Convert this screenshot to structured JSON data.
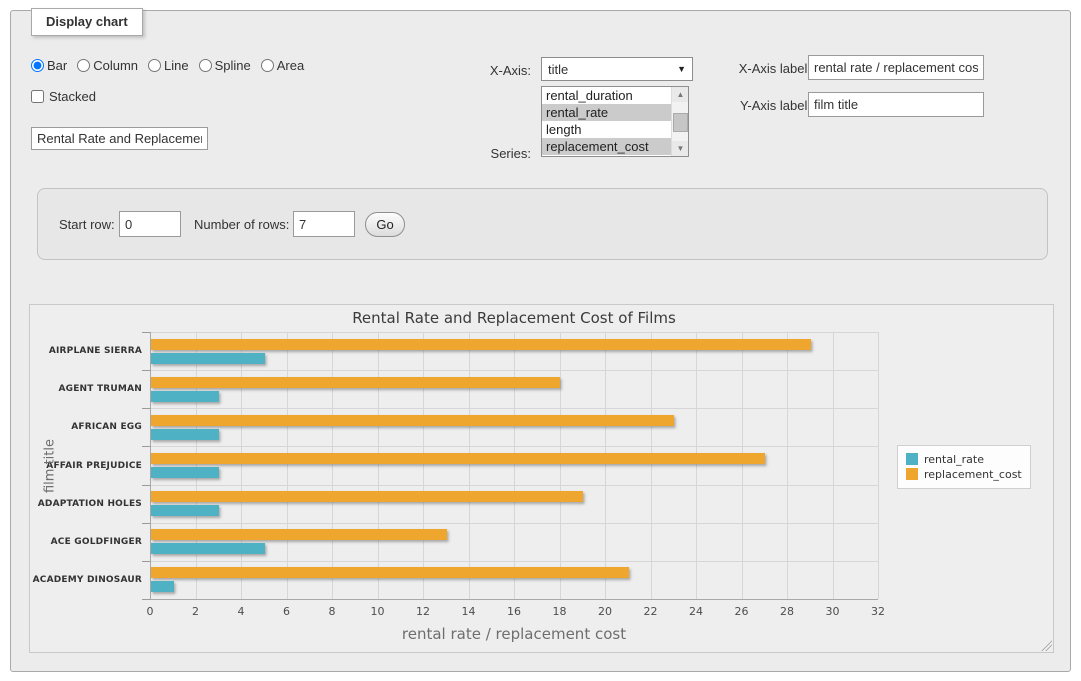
{
  "window": {
    "legend": "Display chart"
  },
  "chart_type": {
    "options": [
      {
        "label": "Bar",
        "selected": true
      },
      {
        "label": "Column",
        "selected": false
      },
      {
        "label": "Line",
        "selected": false
      },
      {
        "label": "Spline",
        "selected": false
      },
      {
        "label": "Area",
        "selected": false
      }
    ]
  },
  "stacked": {
    "label": "Stacked",
    "checked": false
  },
  "chart_title_input": {
    "value": "Rental Rate and Replacement Cost of Films"
  },
  "x_axis_select": {
    "label": "X-Axis:",
    "selected": "title",
    "arrow_icon": "▼"
  },
  "series_listbox": {
    "label": "Series:",
    "options": [
      {
        "label": "rental_duration",
        "selected": false
      },
      {
        "label": "rental_rate",
        "selected": true
      },
      {
        "label": "length",
        "selected": false
      },
      {
        "label": "replacement_cost",
        "selected": true
      }
    ],
    "scroll_up_icon": "▲",
    "scroll_down_icon": "▼"
  },
  "x_axis_label_input": {
    "label": "X-Axis label:",
    "value": "rental rate / replacement cost"
  },
  "y_axis_label_input": {
    "label": "Y-Axis label:",
    "value": "film title"
  },
  "pagination": {
    "start_row_label": "Start row:",
    "start_row_value": "0",
    "number_of_rows_label": "Number of rows:",
    "number_of_rows_value": "7",
    "go_label": "Go"
  },
  "chart_data": {
    "type": "bar",
    "title": "Rental Rate and Replacement Cost of Films",
    "categories": [
      "AIRPLANE SIERRA",
      "AGENT TRUMAN",
      "AFRICAN EGG",
      "AFFAIR PREJUDICE",
      "ADAPTATION HOLES",
      "ACE GOLDFINGER",
      "ACADEMY DINOSAUR"
    ],
    "series": [
      {
        "name": "rental_rate",
        "color": "#4FB2C4",
        "values": [
          4.99,
          2.99,
          2.99,
          2.99,
          2.99,
          4.99,
          0.99
        ]
      },
      {
        "name": "replacement_cost",
        "color": "#EEA62F",
        "values": [
          28.99,
          17.99,
          22.99,
          26.99,
          18.99,
          12.99,
          20.99
        ]
      }
    ],
    "series_draw_order_top_to_bottom": [
      "replacement_cost",
      "rental_rate"
    ],
    "xlabel": "rental rate / replacement cost",
    "ylabel": "film title",
    "xlim": [
      0,
      32
    ],
    "xtick_step": 2,
    "grid": true,
    "legend_position": "right"
  }
}
